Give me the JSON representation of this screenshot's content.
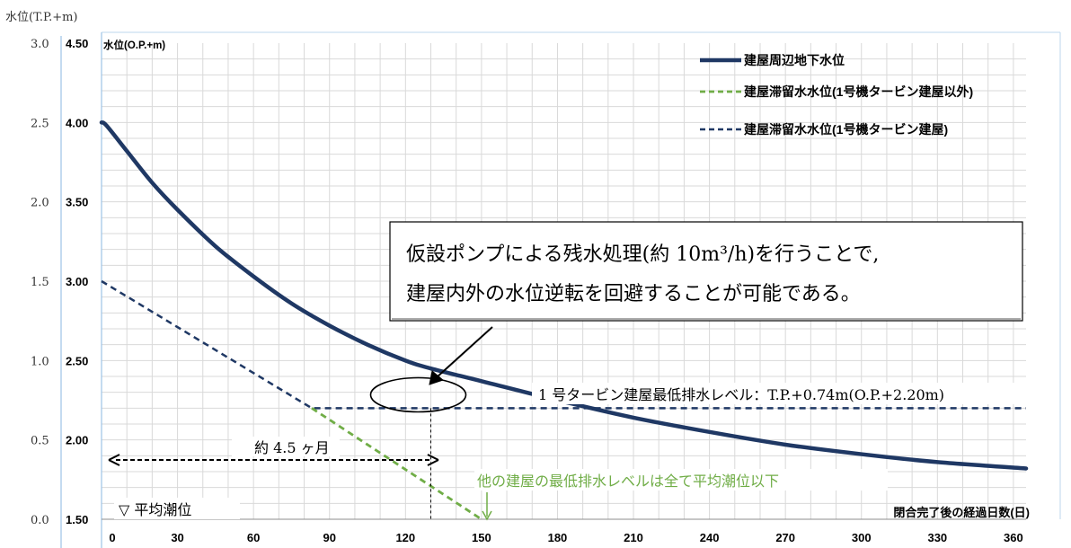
{
  "chart_data": {
    "type": "line",
    "axis_titles": {
      "y_left_outer": "水位(T.P.+m)",
      "y_left_inner": "水位(O.P.+m)",
      "x": "閉合完了後の経過日数(日)"
    },
    "x_ticks": [
      0,
      30,
      60,
      90,
      120,
      150,
      180,
      210,
      240,
      270,
      300,
      330,
      360
    ],
    "xlim": [
      0,
      365
    ],
    "y_ticks_op": [
      "1.50",
      "2.00",
      "2.50",
      "3.00",
      "3.50",
      "4.00",
      "4.50"
    ],
    "y_ticks_tp": [
      "0.0",
      "0.5",
      "1.0",
      "1.5",
      "2.0",
      "2.5",
      "3.0"
    ],
    "ylim_op": [
      1.5,
      4.5
    ],
    "tp_offset": -1.46,
    "grid": true,
    "legend_position": "top-right",
    "legend": [
      "建屋周辺地下水位",
      "建屋滞留水水位(1号機タービン建屋以外)",
      "建屋滞留水水位(1号機タービン建屋)"
    ],
    "colors": {
      "groundwater": "#1f3864",
      "stagnant_other": "#70ad47",
      "stagnant_unit1": "#1f3864",
      "grid": "#d9d9d9",
      "axis": "#9dc3e6",
      "note_green": "#70ad47"
    },
    "series": [
      {
        "name": "建屋周辺地下水位",
        "style": "solid",
        "x": [
          0,
          2,
          10,
          20,
          30,
          45,
          60,
          75,
          90,
          105,
          120,
          130,
          150,
          180,
          210,
          240,
          270,
          300,
          330,
          365
        ],
        "y": [
          4.0,
          3.98,
          3.82,
          3.62,
          3.45,
          3.22,
          3.03,
          2.86,
          2.72,
          2.6,
          2.5,
          2.45,
          2.37,
          2.25,
          2.14,
          2.05,
          1.97,
          1.91,
          1.86,
          1.82
        ]
      },
      {
        "name": "建屋滞留水水位(1号機タービン建屋以外)",
        "style": "dashed",
        "x": [
          83,
          150
        ],
        "y": [
          2.2,
          1.5
        ]
      },
      {
        "name": "建屋滞留水水位(1号機タービン建屋)",
        "style": "dashed",
        "x": [
          0,
          83,
          365
        ],
        "y": [
          3.0,
          2.2,
          2.2
        ]
      }
    ],
    "callout_text": [
      "仮設ポンプによる残水処理(約 10m³/h)を行うことで,",
      "建屋内外の水位逆転を回避することが可能である。"
    ],
    "min_drain_label": "1 号タービン建屋最低排水レベル：T.P.+0.74m(O.P.+2.20m)",
    "duration_label": "約 4.5 ヶ月",
    "duration_range_days": [
      0,
      133
    ],
    "crossing_day": 130,
    "other_buildings_note": "他の建屋の最低排水レベルは全て平均潮位以下",
    "mean_tide_label": "▽ 平均潮位"
  }
}
